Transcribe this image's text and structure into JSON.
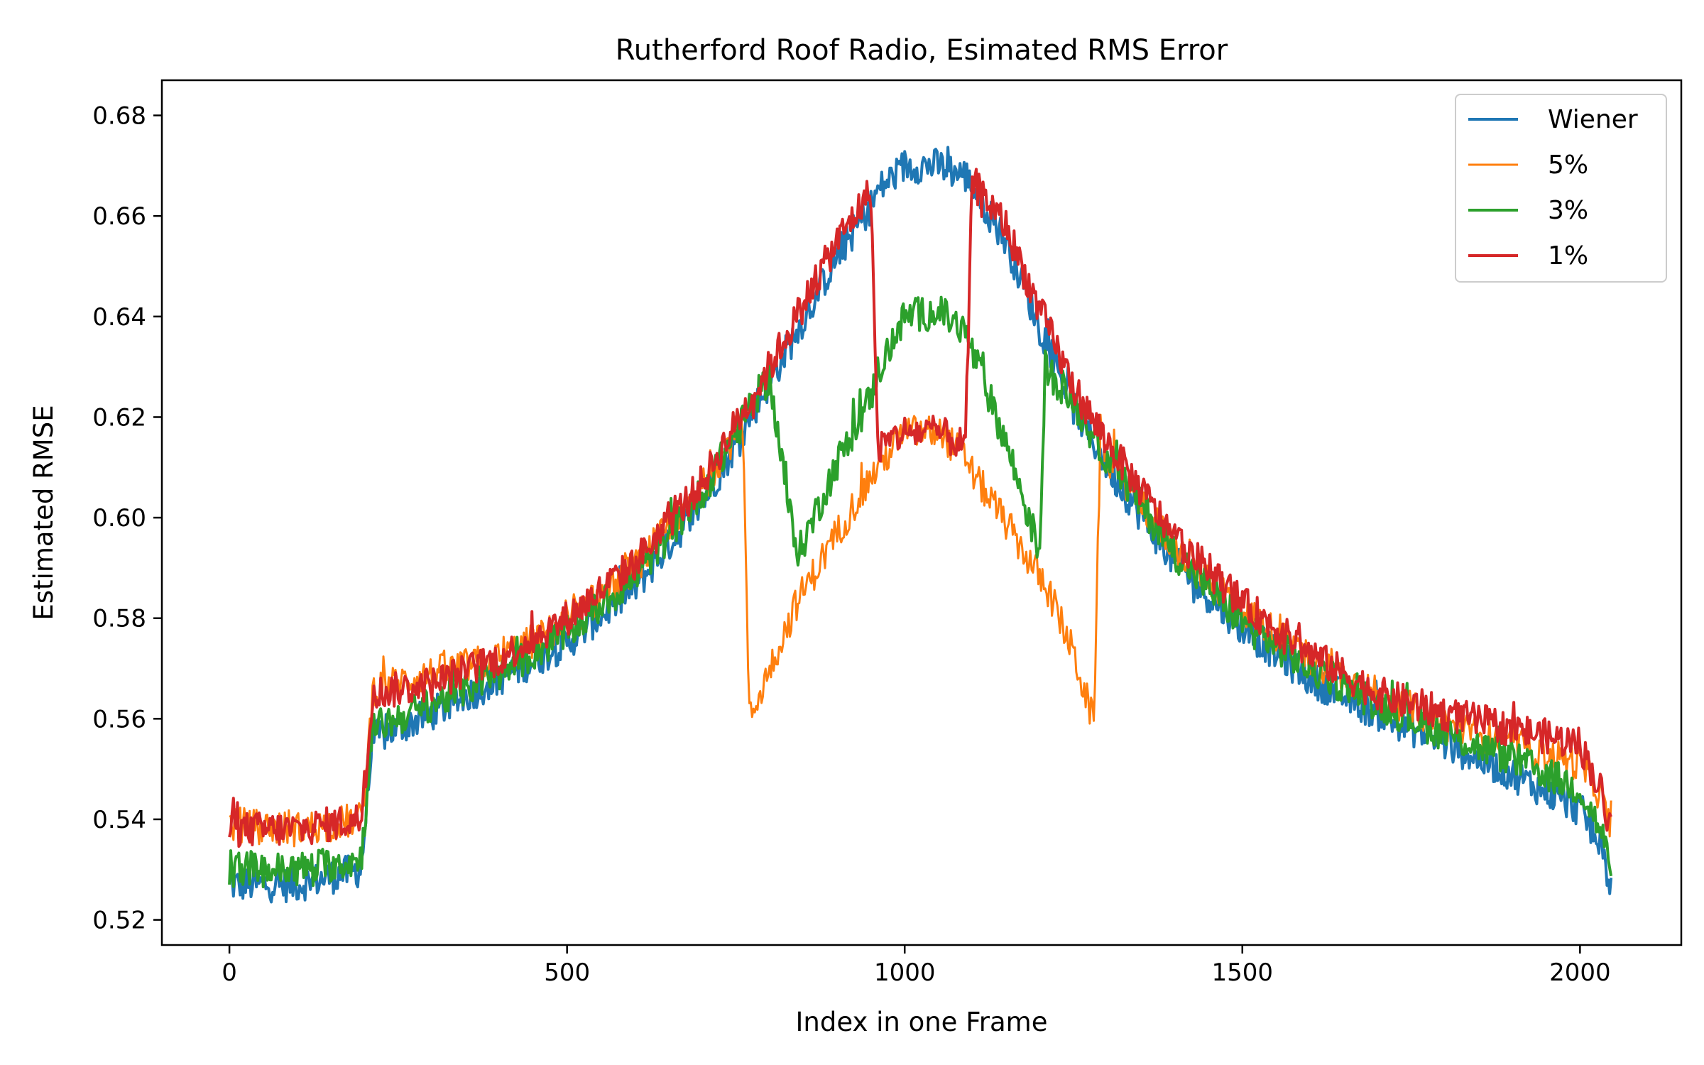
{
  "chart_data": {
    "type": "line",
    "title": "Rutherford Roof Radio, Esimated RMS Error",
    "xlabel": "Index in one Frame",
    "ylabel": "Estimated RMSE",
    "xlim": [
      -100,
      2150
    ],
    "ylim": [
      0.515,
      0.687
    ],
    "x_ticks": [
      0,
      500,
      1000,
      1500,
      2000
    ],
    "y_ticks": [
      0.52,
      0.54,
      0.56,
      0.58,
      0.6,
      0.62,
      0.64,
      0.66,
      0.68
    ],
    "x_tick_labels": [
      "0",
      "500",
      "1000",
      "1500",
      "2000"
    ],
    "y_tick_labels": [
      "0.52",
      "0.54",
      "0.56",
      "0.58",
      "0.60",
      "0.62",
      "0.64",
      "0.66",
      "0.68"
    ],
    "grid": false,
    "legend_position": "top-right",
    "noise_amplitude_note": "series are noisy; values give approximate centerline",
    "x": [
      0,
      10,
      100,
      195,
      205,
      212,
      300,
      400,
      500,
      600,
      700,
      760,
      770,
      800,
      840,
      900,
      950,
      960,
      1000,
      1050,
      1090,
      1100,
      1150,
      1200,
      1208,
      1250,
      1280,
      1290,
      1300,
      1400,
      1500,
      1600,
      1700,
      1800,
      1900,
      2000,
      2030,
      2047
    ],
    "series": [
      {
        "name": "Wiener",
        "color": "#1f77b4",
        "width": 4,
        "amplitude": 0.0035,
        "values": [
          0.527,
          0.527,
          0.527,
          0.53,
          0.545,
          0.556,
          0.561,
          0.568,
          0.575,
          0.586,
          0.603,
          0.617,
          0.62,
          0.627,
          0.637,
          0.652,
          0.662,
          0.665,
          0.67,
          0.67,
          0.668,
          0.666,
          0.655,
          0.638,
          0.636,
          0.622,
          0.615,
          0.613,
          0.61,
          0.591,
          0.578,
          0.568,
          0.561,
          0.555,
          0.549,
          0.542,
          0.535,
          0.526
        ]
      },
      {
        "name": "5%",
        "color": "#ff7f0e",
        "width": 3,
        "amplitude": 0.0035,
        "values": [
          0.539,
          0.539,
          0.538,
          0.54,
          0.552,
          0.566,
          0.569,
          0.572,
          0.579,
          0.59,
          0.606,
          0.619,
          0.56,
          0.57,
          0.583,
          0.597,
          0.608,
          0.61,
          0.617,
          0.617,
          0.612,
          0.609,
          0.599,
          0.588,
          0.587,
          0.573,
          0.559,
          0.617,
          0.612,
          0.594,
          0.582,
          0.572,
          0.565,
          0.559,
          0.555,
          0.551,
          0.545,
          0.537
        ]
      },
      {
        "name": "3%",
        "color": "#2ca02c",
        "width": 4,
        "amplitude": 0.0035,
        "values": [
          0.53,
          0.53,
          0.53,
          0.532,
          0.547,
          0.558,
          0.563,
          0.569,
          0.577,
          0.588,
          0.605,
          0.619,
          0.622,
          0.628,
          0.592,
          0.611,
          0.624,
          0.629,
          0.64,
          0.641,
          0.637,
          0.633,
          0.615,
          0.593,
          0.63,
          0.623,
          0.616,
          0.614,
          0.612,
          0.593,
          0.579,
          0.57,
          0.563,
          0.557,
          0.552,
          0.546,
          0.538,
          0.53
        ]
      },
      {
        "name": "1%",
        "color": "#d62728",
        "width": 4,
        "amplitude": 0.0035,
        "values": [
          0.538,
          0.538,
          0.538,
          0.54,
          0.553,
          0.565,
          0.567,
          0.572,
          0.58,
          0.591,
          0.607,
          0.621,
          0.623,
          0.63,
          0.64,
          0.655,
          0.665,
          0.614,
          0.617,
          0.617,
          0.614,
          0.667,
          0.658,
          0.641,
          0.639,
          0.626,
          0.619,
          0.617,
          0.615,
          0.596,
          0.583,
          0.573,
          0.565,
          0.561,
          0.558,
          0.555,
          0.546,
          0.538
        ]
      }
    ]
  }
}
